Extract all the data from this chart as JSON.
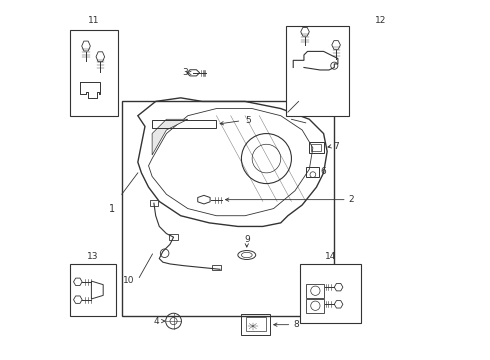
{
  "title": "",
  "bg_color": "#ffffff",
  "line_color": "#333333",
  "fig_width": 4.9,
  "fig_height": 3.6,
  "dpi": 100
}
